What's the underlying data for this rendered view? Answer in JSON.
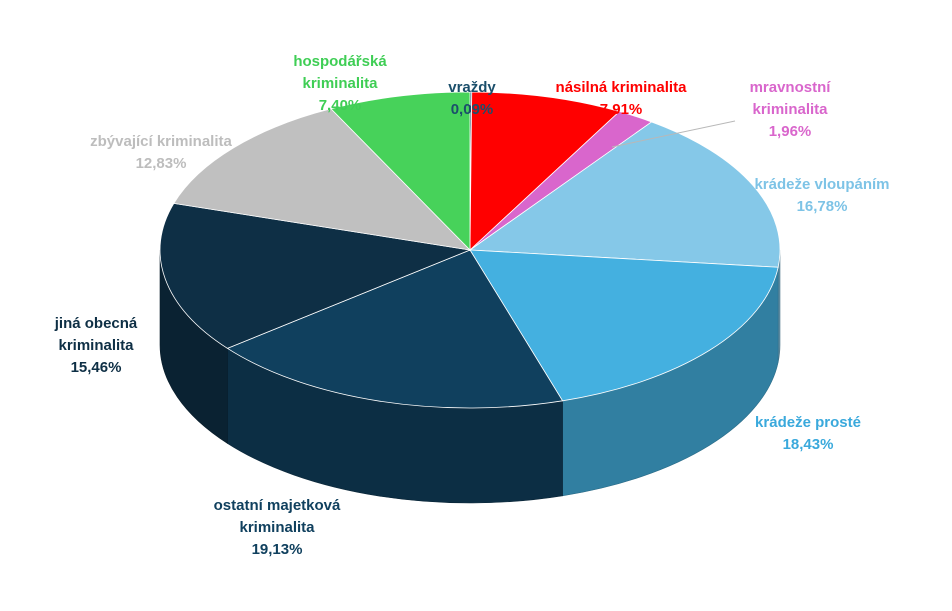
{
  "chart_data": {
    "type": "pie",
    "style": "3d",
    "title": "",
    "legend": "none",
    "slices": [
      {
        "label": "vraždy",
        "label_lines": [
          "vraždy"
        ],
        "value_text": "0,09%",
        "value": 0.09,
        "color": "#1b4f6b",
        "label_color": "#1b4f6b"
      },
      {
        "label": "násilná kriminalita",
        "label_lines": [
          "násilná kriminalita"
        ],
        "value_text": "7,91%",
        "value": 7.91,
        "color": "#ff0000",
        "label_color": "#ff0000"
      },
      {
        "label": "mravnostní kriminalita",
        "label_lines": [
          "mravnostní",
          "kriminalita"
        ],
        "value_text": "1,96%",
        "value": 1.96,
        "color": "#d966cc",
        "label_color": "#d966cc"
      },
      {
        "label": "krádeže vloupáním",
        "label_lines": [
          "krádeže vloupáním"
        ],
        "value_text": "16,78%",
        "value": 16.78,
        "color": "#85c8e8",
        "label_color": "#7dc3e6"
      },
      {
        "label": "krádeže prosté",
        "label_lines": [
          "krádeže prosté"
        ],
        "value_text": "18,43%",
        "value": 18.43,
        "color": "#44b0e0",
        "label_color": "#3aa9dc"
      },
      {
        "label": "ostatní majetková kriminalita",
        "label_lines": [
          "ostatní majetková",
          "kriminalita"
        ],
        "value_text": "19,13%",
        "value": 19.13,
        "color": "#10405e",
        "label_color": "#10405e"
      },
      {
        "label": "jiná obecná kriminalita",
        "label_lines": [
          "jiná obecná",
          "kriminalita"
        ],
        "value_text": "15,46%",
        "value": 15.46,
        "color": "#0e2f45",
        "label_color": "#0e2f45"
      },
      {
        "label": "zbývající kriminalita",
        "label_lines": [
          "zbývající kriminalita"
        ],
        "value_text": "12,83%",
        "value": 12.83,
        "color": "#c0c0c0",
        "label_color": "#bdbdbd"
      },
      {
        "label": "hospodářská kriminalita",
        "label_lines": [
          "hospodářská",
          "kriminalita"
        ],
        "value_text": "7,40%",
        "value": 7.4,
        "color": "#47d25a",
        "label_color": "#3fce55"
      }
    ]
  }
}
